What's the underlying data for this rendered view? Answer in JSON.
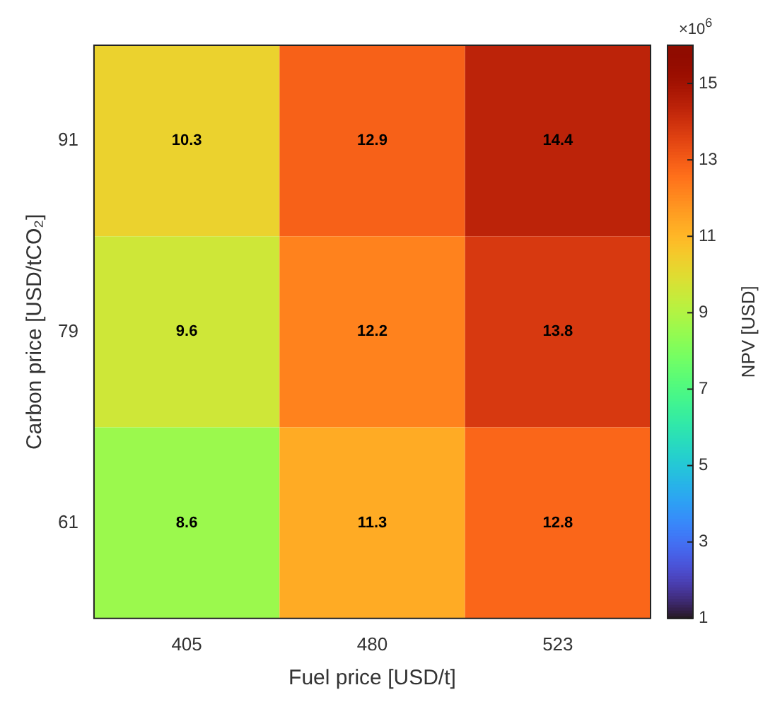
{
  "chart_data": {
    "type": "heatmap",
    "xlabel": "Fuel price [USD/t]",
    "ylabel": "Carbon price [USD/tCO₂]",
    "clabel": "NPV [USD]",
    "categories": [
      "405",
      "480",
      "523"
    ],
    "y_categories": [
      "91",
      "79",
      "61"
    ],
    "cells": [
      [
        10.3,
        12.9,
        14.4
      ],
      [
        9.6,
        12.2,
        13.8
      ],
      [
        8.6,
        11.3,
        12.8
      ]
    ],
    "clim": [
      1,
      16
    ],
    "cticks": [
      1,
      3,
      5,
      7,
      9,
      11,
      13,
      15
    ],
    "data_labels": true,
    "annotations": [
      "×10$^{6}$"
    ]
  }
}
